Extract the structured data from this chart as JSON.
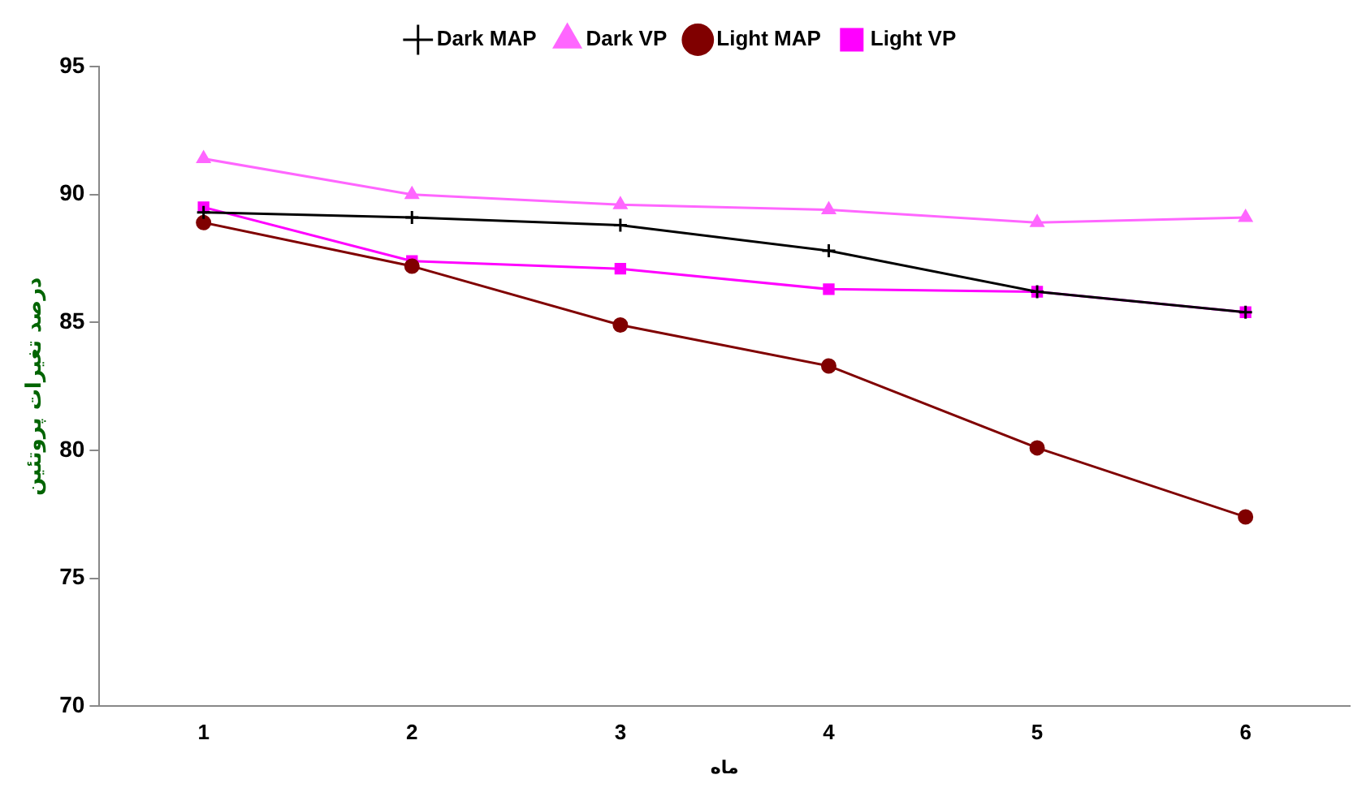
{
  "chart_data": {
    "type": "line",
    "xlabel": "ماه",
    "ylabel": "درصد تغيرات پروتئين",
    "categories": [
      "1",
      "2",
      "3",
      "4",
      "5",
      "6"
    ],
    "ylim": [
      70,
      95
    ],
    "yticks": [
      70,
      75,
      80,
      85,
      90,
      95
    ],
    "grid": false,
    "legend": "top",
    "line_style": "solid",
    "series": [
      {
        "name": "Light VP",
        "color": "#ff00ff",
        "marker": "square",
        "values": [
          89.5,
          87.4,
          87.1,
          86.3,
          86.2,
          85.4
        ]
      },
      {
        "name": "Light MAP",
        "color": "#800000",
        "marker": "circle",
        "values": [
          88.9,
          87.2,
          84.9,
          83.3,
          80.1,
          77.4
        ]
      },
      {
        "name": "Dark VP",
        "color": "#ff66ff",
        "marker": "triangle",
        "values": [
          91.4,
          90.0,
          89.6,
          89.4,
          88.9,
          89.1
        ]
      },
      {
        "name": "Dark MAP",
        "color": "#000000",
        "marker": "cross",
        "values": [
          89.3,
          89.1,
          88.8,
          87.8,
          86.2,
          85.4
        ]
      }
    ]
  }
}
